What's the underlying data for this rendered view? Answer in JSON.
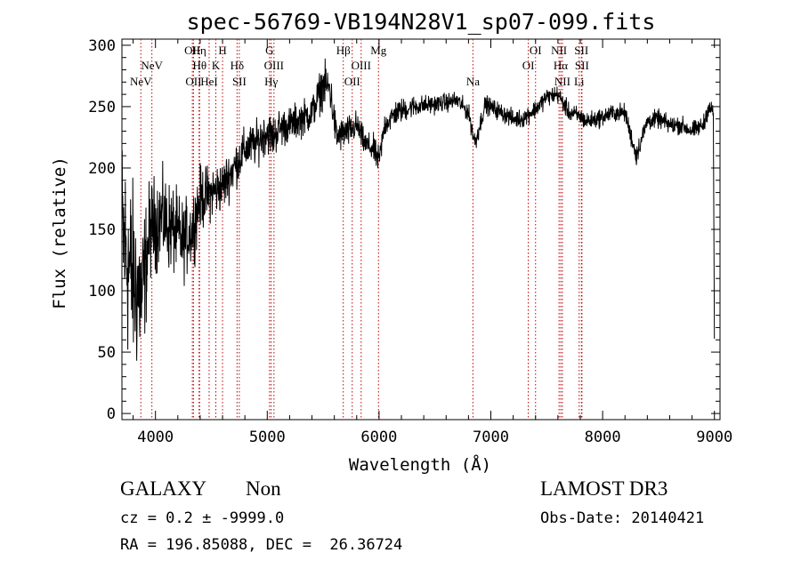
{
  "chart_data": {
    "type": "line",
    "title": "spec-56769-VB194N28V1_sp07-099.fits",
    "xlabel": "Wavelength (Å)",
    "ylabel": "Flux (relative)",
    "xlim": [
      3700,
      9050
    ],
    "ylim": [
      -5,
      305
    ],
    "xticks": [
      4000,
      5000,
      6000,
      7000,
      8000,
      9000
    ],
    "yticks": [
      0,
      50,
      100,
      150,
      200,
      250,
      300
    ],
    "grid": false,
    "line_color": "#000000",
    "marker_color": "#c00000",
    "spectrum_knots": {
      "x": [
        3700,
        3760,
        3820,
        3880,
        3950,
        4050,
        4150,
        4250,
        4330,
        4400,
        4500,
        4600,
        4700,
        4800,
        4900,
        5000,
        5050,
        5100,
        5200,
        5300,
        5400,
        5500,
        5560,
        5620,
        5680,
        5740,
        5800,
        5870,
        5950,
        6000,
        6050,
        6150,
        6300,
        6500,
        6700,
        6800,
        6860,
        6950,
        7100,
        7200,
        7280,
        7400,
        7500,
        7600,
        7700,
        7800,
        7850,
        7950,
        8100,
        8200,
        8300,
        8400,
        8500,
        8600,
        8700,
        8800,
        8900,
        8950,
        8990,
        9000
      ],
      "y": [
        150,
        120,
        105,
        95,
        150,
        160,
        150,
        140,
        150,
        175,
        180,
        185,
        200,
        215,
        220,
        230,
        225,
        232,
        235,
        240,
        245,
        268,
        265,
        225,
        228,
        230,
        235,
        220,
        215,
        205,
        235,
        245,
        250,
        252,
        255,
        245,
        220,
        252,
        245,
        240,
        240,
        248,
        258,
        260,
        245,
        242,
        238,
        240,
        245,
        245,
        210,
        238,
        240,
        235,
        235,
        230,
        235,
        250,
        245,
        60
      ],
      "noise_sigma": [
        55,
        55,
        50,
        42,
        28,
        25,
        25,
        22,
        20,
        18,
        15,
        14,
        13,
        12,
        12,
        12,
        12,
        11,
        10,
        10,
        10,
        12,
        12,
        10,
        9,
        9,
        8,
        7,
        8,
        8,
        7,
        7,
        6,
        5,
        5,
        5,
        6,
        5,
        5,
        5,
        5,
        5,
        5,
        5,
        5,
        5,
        5,
        5,
        5,
        5,
        6,
        5,
        5,
        5,
        5,
        5,
        5,
        5,
        5,
        5
      ]
    },
    "lines": [
      {
        "label": "NeV",
        "x": 3869,
        "row": 2
      },
      {
        "label": "NeV",
        "x": 3968,
        "row": 1
      },
      {
        "label": "OII",
        "x": 4330,
        "row": 0
      },
      {
        "label": "OII",
        "x": 4340,
        "row": 2
      },
      {
        "label": "Hη",
        "x": 4390,
        "row": 0
      },
      {
        "label": "Hθ",
        "x": 4395,
        "row": 1
      },
      {
        "label": "HeI",
        "x": 4480,
        "row": 2
      },
      {
        "label": "K",
        "x": 4540,
        "row": 1
      },
      {
        "label": "H",
        "x": 4600,
        "row": 0
      },
      {
        "label": "Hδ",
        "x": 4730,
        "row": 1
      },
      {
        "label": "SII",
        "x": 4750,
        "row": 2
      },
      {
        "label": "G",
        "x": 5020,
        "row": 0
      },
      {
        "label": "OIII",
        "x": 5060,
        "row": 1
      },
      {
        "label": "Hγ",
        "x": 5035,
        "row": 2
      },
      {
        "label": "Hβ",
        "x": 5680,
        "row": 0
      },
      {
        "label": "OII",
        "x": 5760,
        "row": 2
      },
      {
        "label": "OIII",
        "x": 5840,
        "row": 1
      },
      {
        "label": "Mg",
        "x": 5995,
        "row": 0
      },
      {
        "label": "Na",
        "x": 6840,
        "row": 2
      },
      {
        "label": "OI",
        "x": 7335,
        "row": 1
      },
      {
        "label": "OI",
        "x": 7400,
        "row": 0
      },
      {
        "label": "NII",
        "x": 7610,
        "row": 0
      },
      {
        "label": "Hα",
        "x": 7625,
        "row": 1
      },
      {
        "label": "NII",
        "x": 7640,
        "row": 2
      },
      {
        "label": "SII",
        "x": 7810,
        "row": 0
      },
      {
        "label": "SII",
        "x": 7815,
        "row": 1
      },
      {
        "label": "Li",
        "x": 7790,
        "row": 2
      }
    ]
  },
  "info": {
    "class_label": "GALAXY",
    "subclass_label": "Non",
    "survey": "LAMOST DR3",
    "cz_text": "cz = 0.2 ± -9999.0",
    "obs_date": "Obs-Date: 20140421",
    "coords": "RA = 196.85088, DEC =  26.36724"
  }
}
